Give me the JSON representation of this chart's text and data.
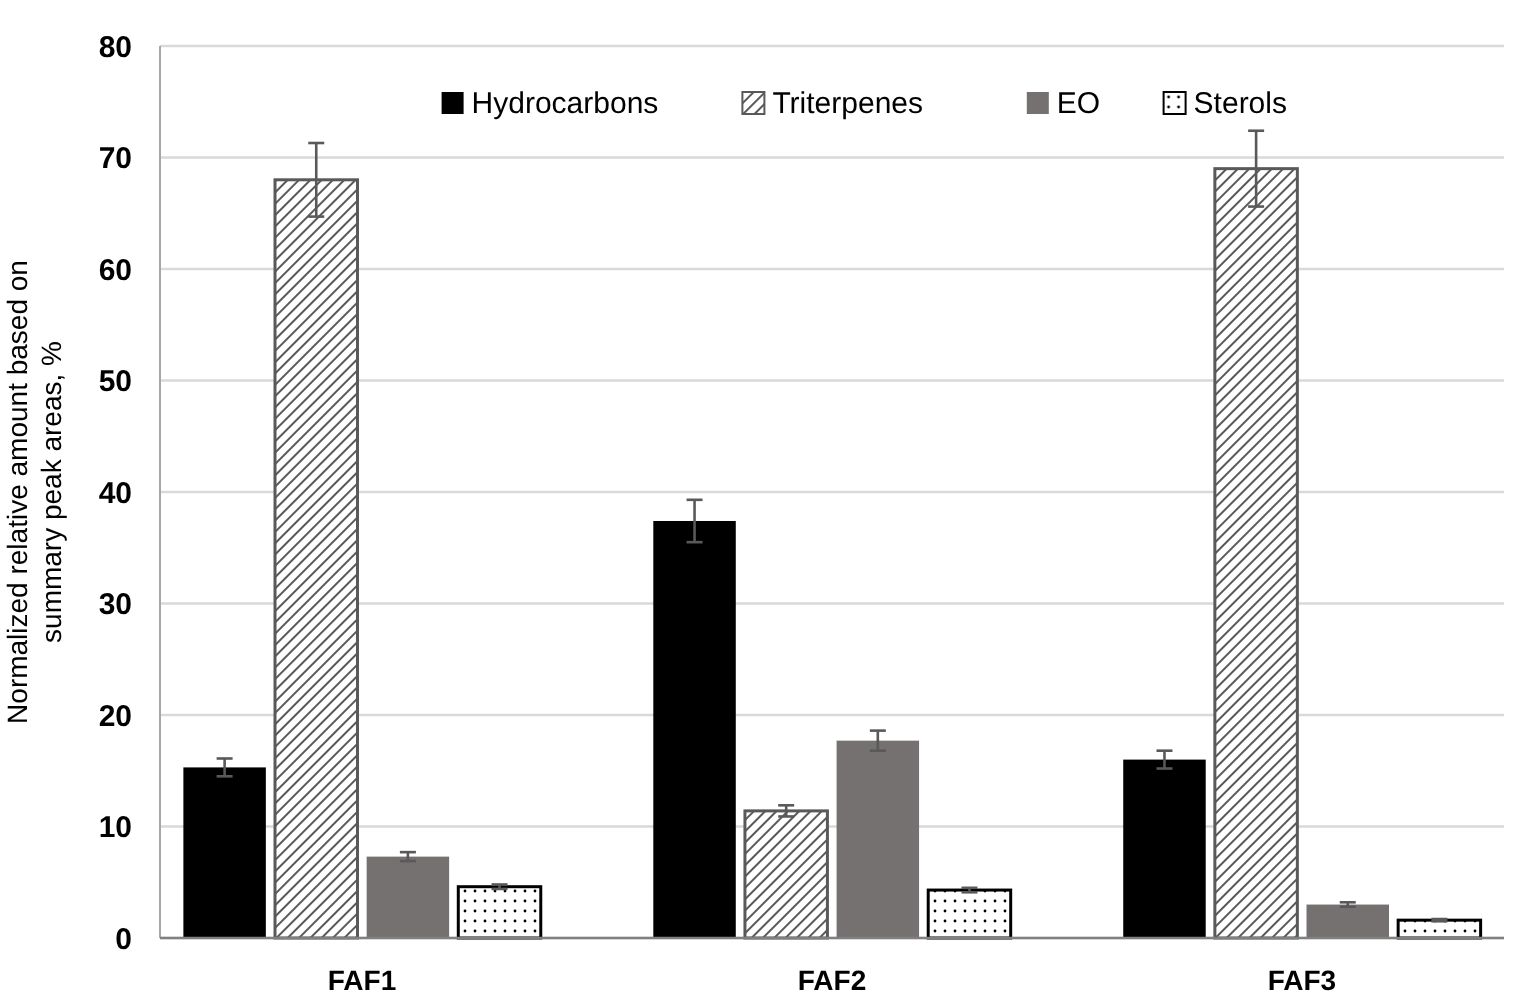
{
  "chart_data": {
    "type": "bar",
    "ylabel": "Normalized relative amount based on summary peak areas, %",
    "categories": [
      "FAF1",
      "FAF2",
      "FAF3"
    ],
    "series": [
      {
        "name": "Hydrocarbons",
        "color": "#000000",
        "values": [
          15.3,
          37.4,
          16.0
        ],
        "errors": [
          0.8,
          1.9,
          0.8
        ]
      },
      {
        "name": "Triterpenes",
        "color": "#595959",
        "values": [
          68.0,
          11.4,
          69.0
        ],
        "errors": [
          3.3,
          0.5,
          3.4
        ]
      },
      {
        "name": "EO",
        "color": "#767171",
        "values": [
          7.3,
          17.7,
          3.0
        ],
        "errors": [
          0.4,
          0.9,
          0.2
        ]
      },
      {
        "name": "Sterols",
        "color": "#000000",
        "values": [
          4.6,
          4.3,
          1.6
        ],
        "errors": [
          0.2,
          0.2,
          0.1
        ]
      }
    ],
    "ylim": [
      0,
      80
    ],
    "yticks": [
      0,
      10,
      20,
      30,
      40,
      50,
      60,
      70,
      80
    ],
    "grid": "y",
    "legend": "top"
  }
}
